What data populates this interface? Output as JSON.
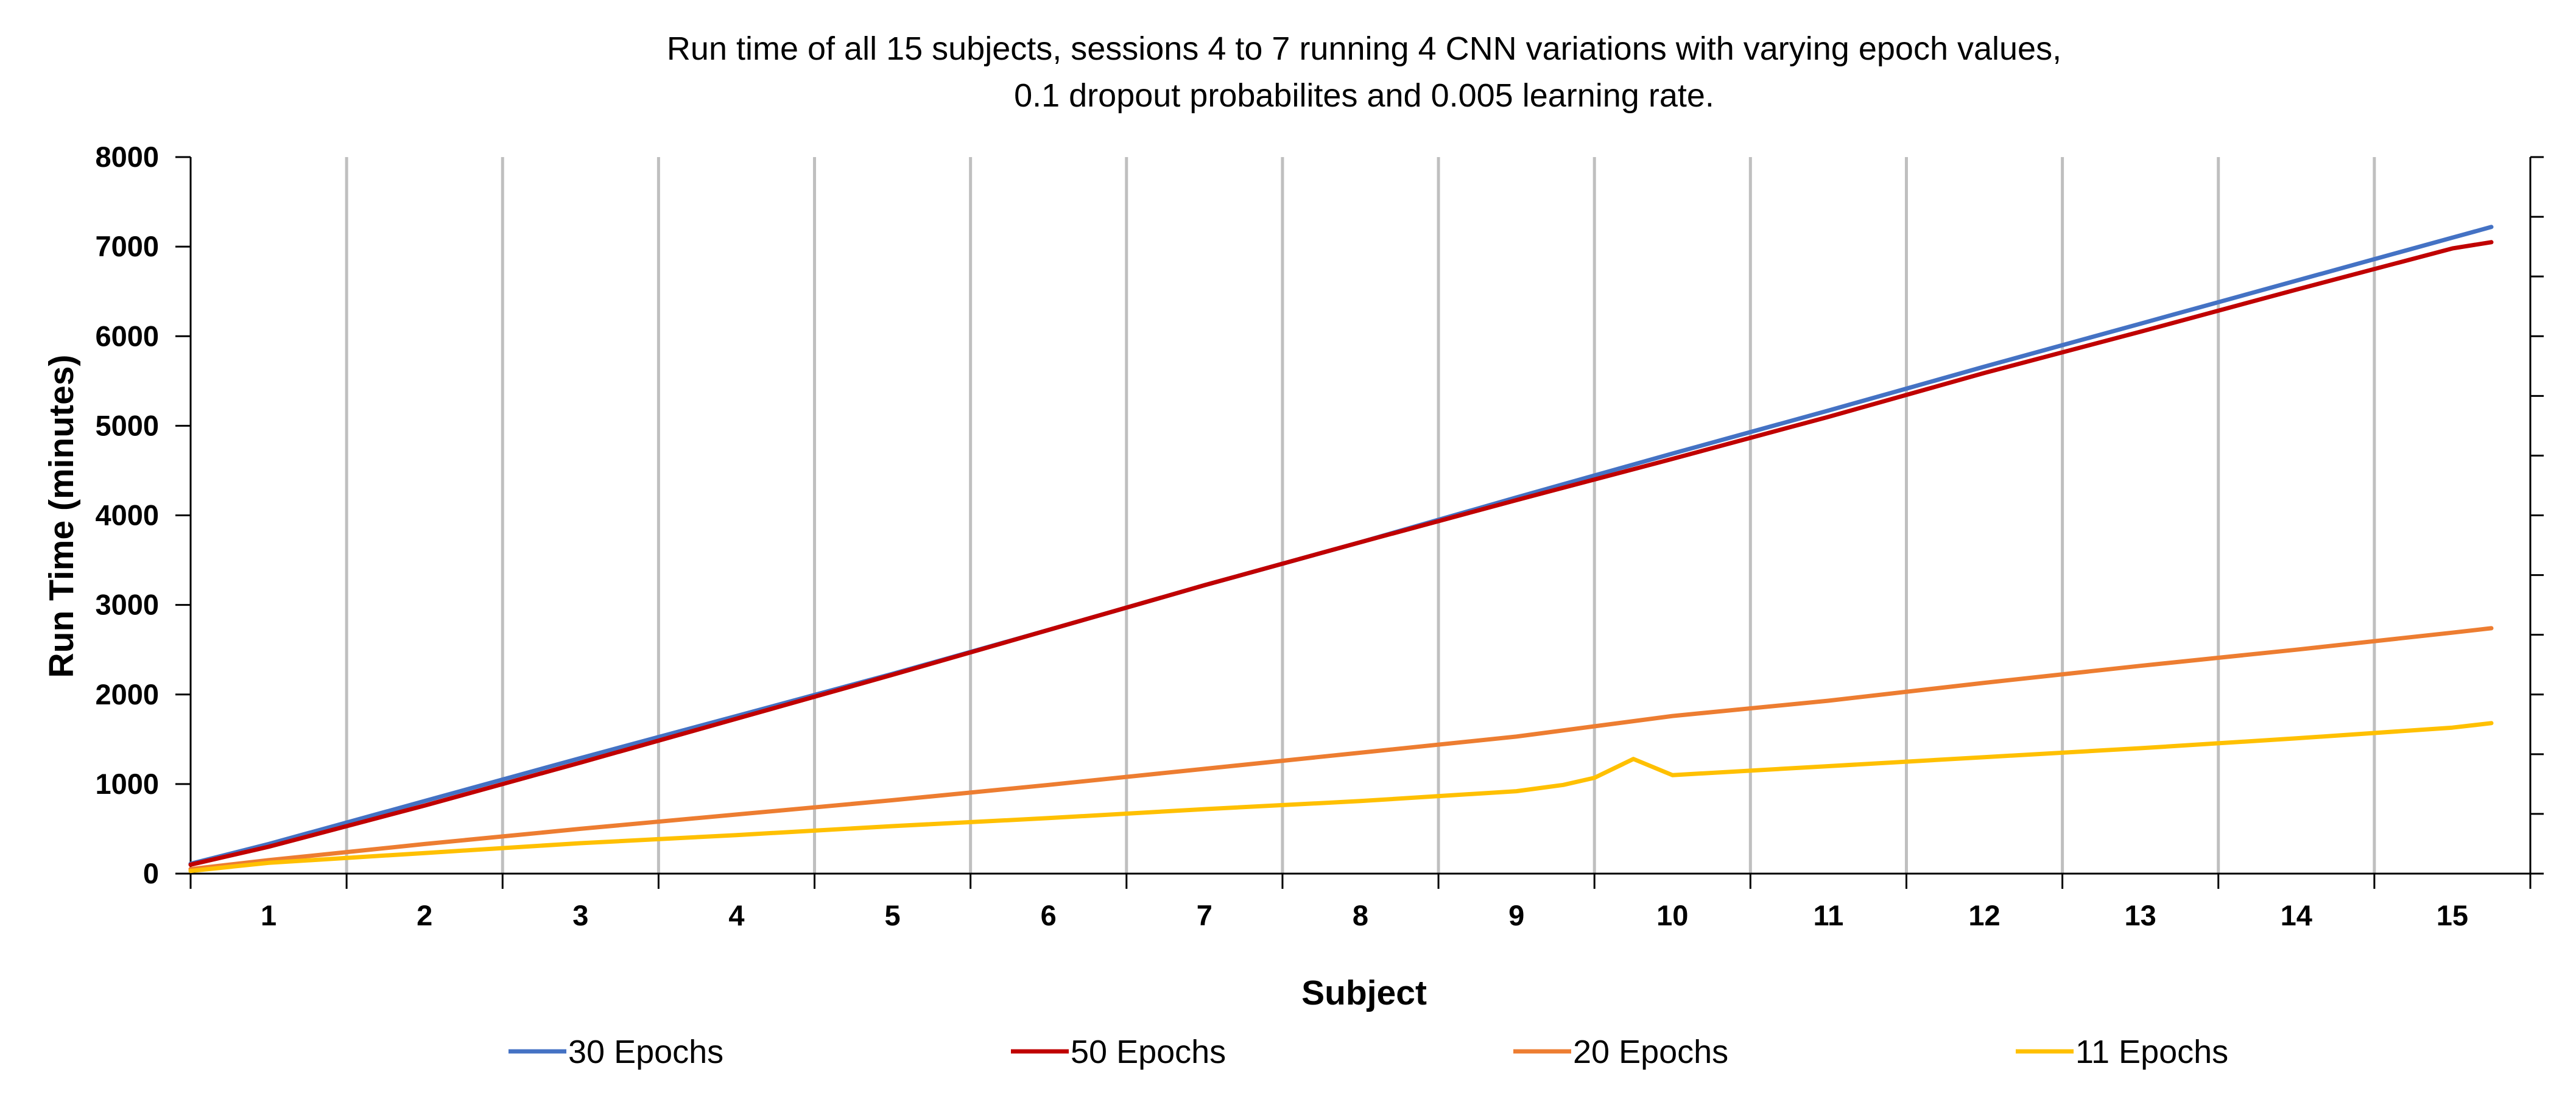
{
  "chart_data": {
    "type": "line",
    "title_lines": [
      "Run time of all 15 subjects, sessions 4 to 7 running 4 CNN variations with varying epoch values,",
      "0.1 dropout probabilites and 0.005 learning rate."
    ],
    "xlabel": "Subject",
    "ylabel": "Run Time (minutes)",
    "categories": [
      "1",
      "2",
      "3",
      "4",
      "5",
      "6",
      "7",
      "8",
      "9",
      "10",
      "11",
      "12",
      "13",
      "14",
      "15"
    ],
    "ylim": [
      0,
      8000
    ],
    "yticks": [
      0,
      1000,
      2000,
      3000,
      4000,
      5000,
      6000,
      7000,
      8000
    ],
    "grid": "vertical",
    "legend_position": "bottom",
    "series": [
      {
        "name": "30 Epochs",
        "color": "#4472C4",
        "x": [
          0.5,
          1,
          2,
          3,
          4,
          5,
          6,
          7,
          8,
          9,
          10,
          11,
          12,
          13,
          14,
          15,
          15.25
        ],
        "values": [
          110,
          330,
          810,
          1290,
          1760,
          2230,
          2720,
          3220,
          3700,
          4200,
          4690,
          5170,
          5660,
          6140,
          6620,
          7100,
          7220
        ]
      },
      {
        "name": "50 Epochs",
        "color": "#C00000",
        "x": [
          0.5,
          1,
          2,
          3,
          4,
          5,
          6,
          7,
          8,
          9,
          10,
          11,
          12,
          13,
          14,
          15,
          15.25
        ],
        "values": [
          100,
          300,
          760,
          1240,
          1730,
          2220,
          2720,
          3220,
          3700,
          4170,
          4630,
          5100,
          5590,
          6050,
          6520,
          6980,
          7050
        ]
      },
      {
        "name": "20 Epochs",
        "color": "#ED7D31",
        "x": [
          0.5,
          1,
          2,
          3,
          4,
          5,
          6,
          7,
          8,
          9,
          10,
          11,
          12,
          13,
          14,
          15,
          15.25
        ],
        "values": [
          50,
          150,
          330,
          500,
          660,
          820,
          990,
          1170,
          1350,
          1530,
          1760,
          1930,
          2130,
          2320,
          2500,
          2690,
          2740
        ]
      },
      {
        "name": "11 Epochs",
        "color": "#FFC000",
        "x": [
          0.5,
          1,
          2,
          3,
          4,
          5,
          6,
          7,
          8,
          9,
          9.3,
          9.5,
          9.75,
          10,
          11,
          12,
          13,
          14,
          15,
          15.25
        ],
        "values": [
          30,
          120,
          230,
          340,
          430,
          530,
          620,
          720,
          810,
          920,
          990,
          1070,
          1280,
          1100,
          1200,
          1300,
          1400,
          1510,
          1630,
          1680
        ]
      }
    ]
  }
}
